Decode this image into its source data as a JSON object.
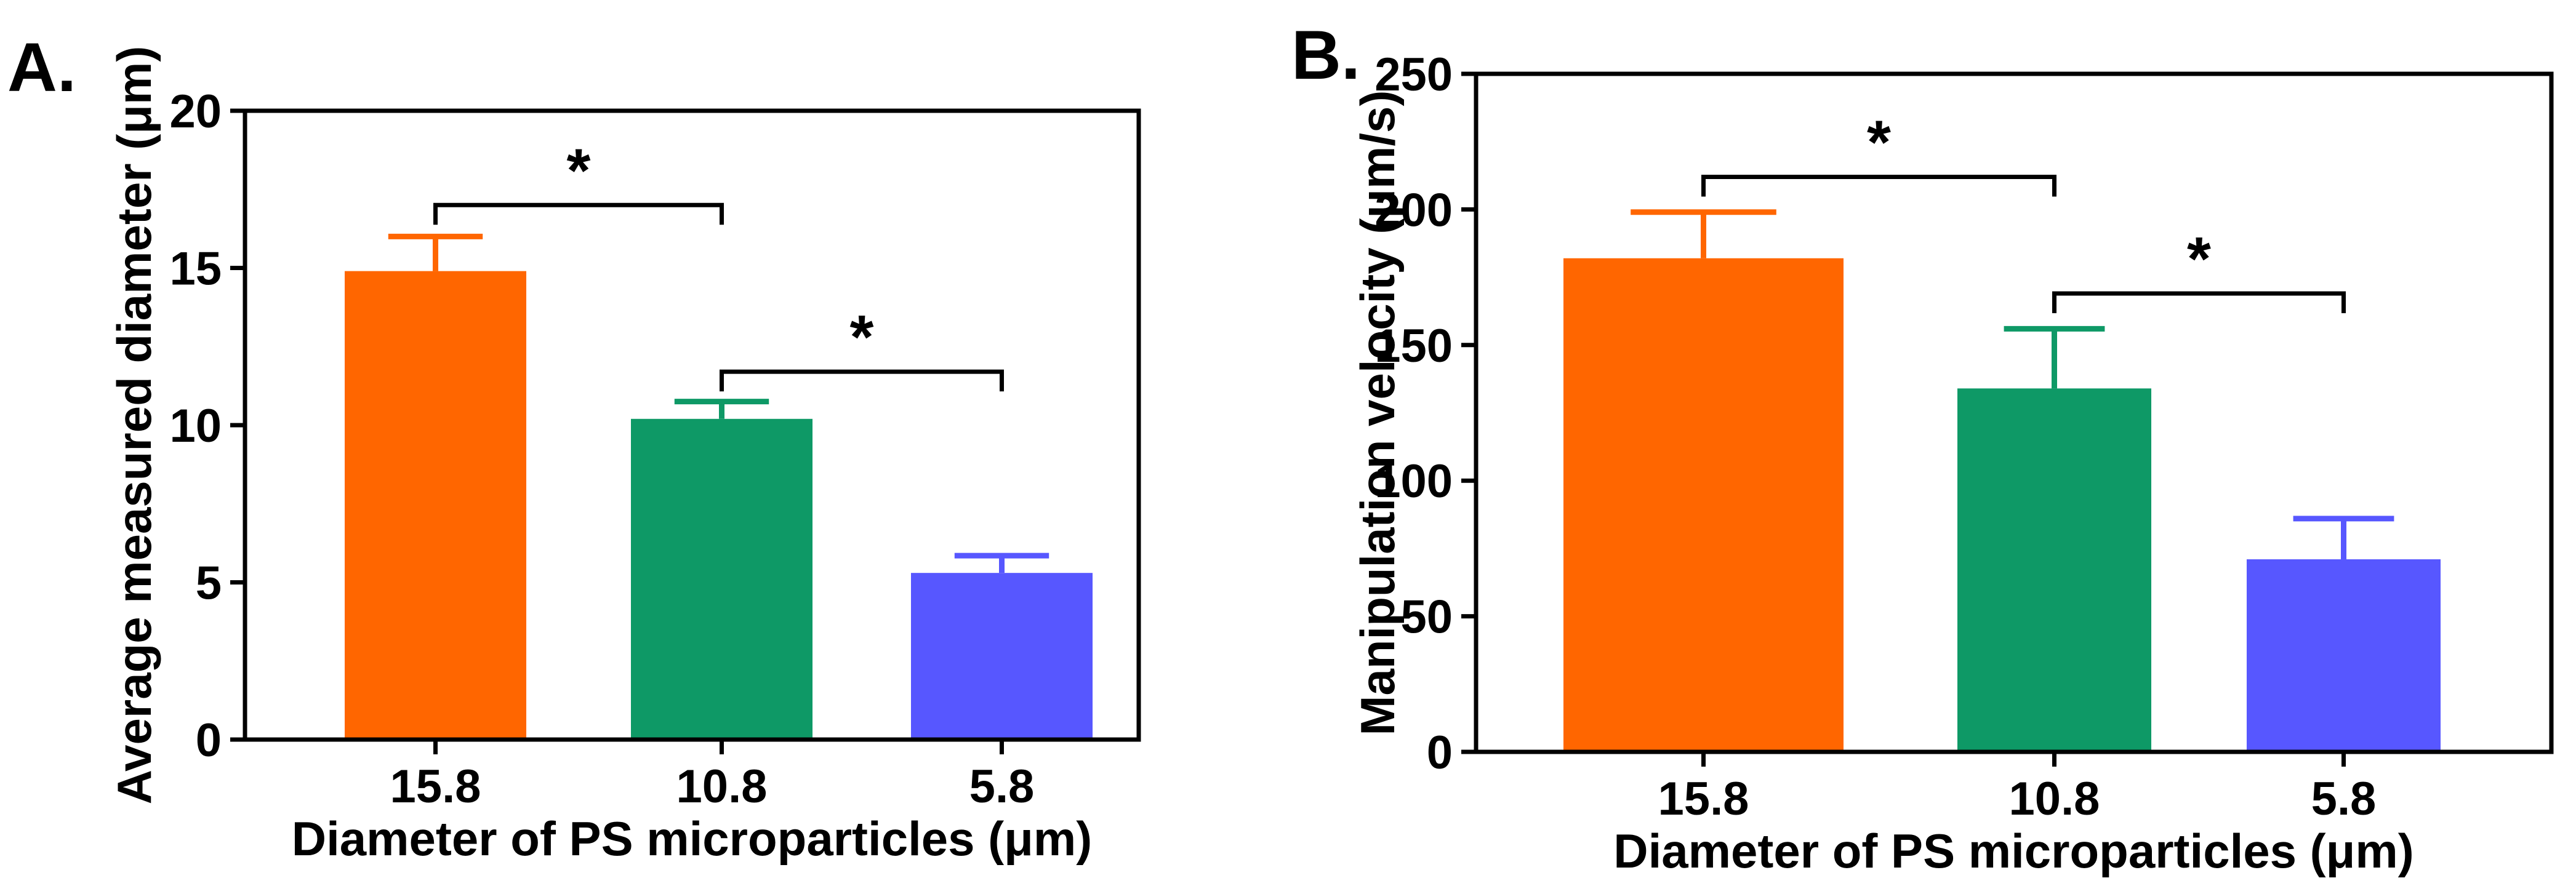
{
  "chart_data": [
    {
      "type": "bar",
      "panel_label": "A.",
      "title": "",
      "xlabel": "Diameter of PS microparticles (μm)",
      "ylabel": "Average measured diameter (μm)",
      "categories": [
        "15.8",
        "10.8",
        "5.8"
      ],
      "values": [
        14.9,
        10.2,
        5.3
      ],
      "errors": [
        1.1,
        0.55,
        0.55
      ],
      "colors": [
        "#FF6600",
        "#0E9966",
        "#5757FF"
      ],
      "ylim": [
        0,
        20
      ],
      "yticks": [
        0,
        5,
        10,
        15,
        20
      ],
      "ytick_labels": [
        "0",
        "5",
        "10",
        "15",
        "20"
      ],
      "grid": false,
      "significance": [
        {
          "from": 0,
          "to": 1,
          "y": 17.0,
          "label": "*"
        },
        {
          "from": 1,
          "to": 2,
          "y": 11.7,
          "label": "*"
        }
      ]
    },
    {
      "type": "bar",
      "panel_label": "B.",
      "title": "",
      "xlabel": "Diameter of PS microparticles (μm)",
      "ylabel": "Manipulation velocity (μm/s)",
      "categories": [
        "15.8",
        "10.8",
        "5.8"
      ],
      "values": [
        182,
        134,
        71
      ],
      "errors": [
        17,
        22,
        15
      ],
      "colors": [
        "#FF6600",
        "#0E9966",
        "#5757FF"
      ],
      "ylim": [
        0,
        250
      ],
      "yticks": [
        0,
        50,
        100,
        150,
        200,
        250
      ],
      "ytick_labels": [
        "0",
        "50",
        "100",
        "150",
        "200",
        "250"
      ],
      "grid": false,
      "significance": [
        {
          "from": 0,
          "to": 1,
          "y": 212,
          "label": "*"
        },
        {
          "from": 1,
          "to": 2,
          "y": 169,
          "label": "*"
        }
      ]
    }
  ]
}
